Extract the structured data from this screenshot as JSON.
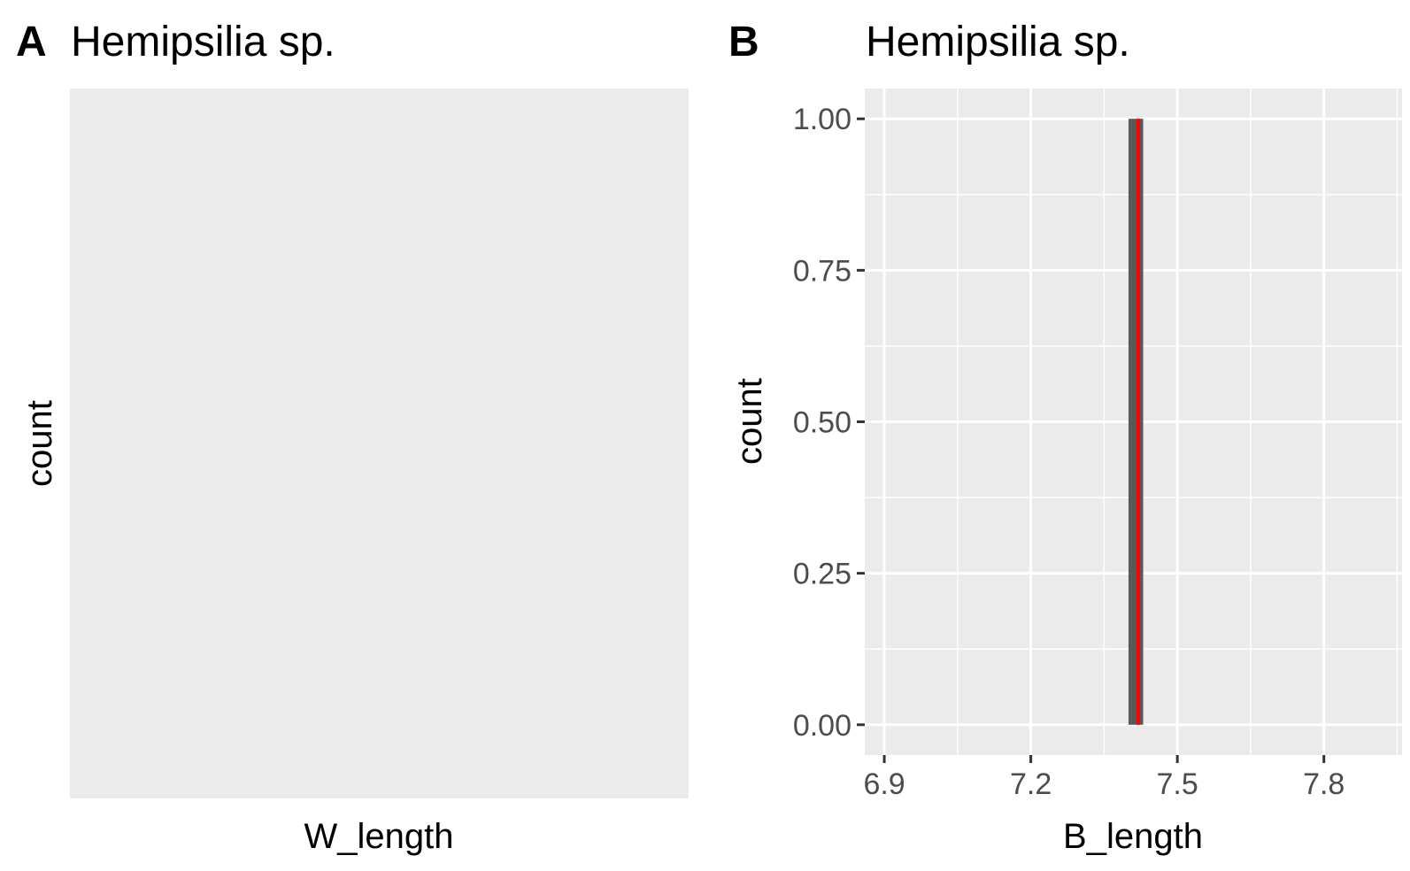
{
  "chart_data": [
    {
      "type": "bar",
      "panel_tag": "A",
      "title": "Hemipsilia sp.",
      "xlabel": "W_length",
      "ylabel": "count",
      "series": [],
      "grid": false
    },
    {
      "type": "bar",
      "panel_tag": "B",
      "title": "Hemipsilia sp.",
      "xlabel": "B_length",
      "ylabel": "count",
      "xlim": [
        6.86,
        7.96
      ],
      "ylim": [
        -0.05,
        1.05
      ],
      "x_ticks": [
        6.9,
        7.2,
        7.5,
        7.8
      ],
      "x_tick_labels": [
        "6.9",
        "7.2",
        "7.5",
        "7.8"
      ],
      "y_ticks": [
        0,
        0.25,
        0.5,
        0.75,
        1
      ],
      "y_tick_labels": [
        "0.00",
        "0.25",
        "0.50",
        "0.75",
        "1.00"
      ],
      "bins": [
        {
          "x_start": 7.4,
          "x_end": 7.43,
          "count": 1
        }
      ],
      "reference_line": {
        "x": 7.42,
        "color": "#ff0000"
      },
      "bar_color": "#595959",
      "panel_background": "#ebebeb",
      "grid": true
    }
  ]
}
